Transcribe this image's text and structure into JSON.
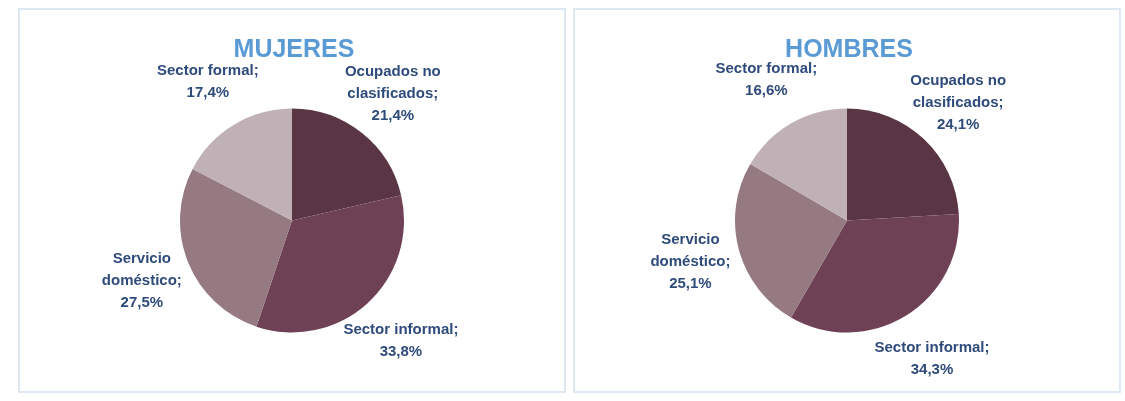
{
  "chart_data": [
    {
      "type": "pie",
      "title": "MUJERES",
      "categories": [
        "Ocupados no clasificados",
        "Sector informal",
        "Servicio doméstico",
        "Sector formal"
      ],
      "values": [
        21.4,
        33.8,
        27.5,
        17.4
      ],
      "colors": [
        "#5a3645",
        "#6e4155",
        "#957a81",
        "#c0b1b7"
      ],
      "value_labels": [
        "; 21,4%",
        "; 33,8%",
        "; 27,5%",
        "; 17,4%"
      ]
    },
    {
      "type": "pie",
      "title": "HOMBRES",
      "categories": [
        "Ocupados no clasificados",
        "Sector informal",
        "Servicio doméstico",
        "Sector formal"
      ],
      "values": [
        24.1,
        34.3,
        25.1,
        16.6
      ],
      "colors": [
        "#5a3645",
        "#6e4155",
        "#957a81",
        "#c0b1b7"
      ],
      "value_labels": [
        "; 24,1%",
        "; 34,3%",
        "; 25,1%",
        "; 16,6%"
      ]
    }
  ]
}
